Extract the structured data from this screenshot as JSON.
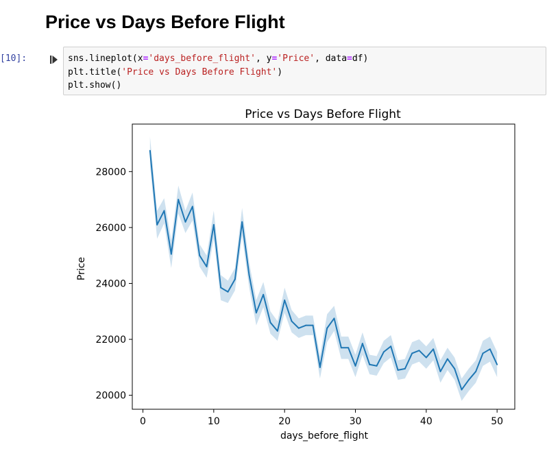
{
  "heading": "Price vs Days Before Flight",
  "cell": {
    "prompt": "[10]:",
    "code_lines": [
      [
        {
          "t": "sns.lineplot(x",
          "c": ""
        },
        {
          "t": "=",
          "c": "op"
        },
        {
          "t": "'days_before_flight'",
          "c": "str"
        },
        {
          "t": ", y",
          "c": ""
        },
        {
          "t": "=",
          "c": "op"
        },
        {
          "t": "'Price'",
          "c": "str"
        },
        {
          "t": ", data",
          "c": ""
        },
        {
          "t": "=",
          "c": "op"
        },
        {
          "t": "df)",
          "c": ""
        }
      ],
      [
        {
          "t": "plt.title(",
          "c": ""
        },
        {
          "t": "'Price vs Days Before Flight'",
          "c": "str"
        },
        {
          "t": ")",
          "c": ""
        }
      ],
      [
        {
          "t": "plt.show()",
          "c": ""
        }
      ]
    ]
  },
  "colors": {
    "line": "#1f77b4",
    "band": "#1f77b4",
    "prompt": "#303F9F",
    "string": "#BA2121",
    "operator": "#AA22FF"
  },
  "icons": {
    "run": "run-cell-icon"
  },
  "chart_data": {
    "type": "line",
    "title": "Price vs Days Before Flight",
    "xlabel": "days_before_flight",
    "ylabel": "Price",
    "xlim": [
      -1.5,
      52.5
    ],
    "ylim": [
      19500,
      29700
    ],
    "xticks": [
      0,
      10,
      20,
      30,
      40,
      50
    ],
    "yticks": [
      20000,
      22000,
      24000,
      26000,
      28000
    ],
    "grid": false,
    "legend": "none",
    "series": [
      {
        "x": [
          1,
          2,
          3,
          4,
          5,
          6,
          7,
          8,
          9,
          10,
          11,
          12,
          13,
          14,
          15,
          16,
          17,
          18,
          19,
          20,
          21,
          22,
          23,
          24,
          25,
          26,
          27,
          28,
          29,
          30,
          31,
          32,
          33,
          34,
          35,
          36,
          37,
          38,
          39,
          40,
          41,
          42,
          43,
          44,
          45,
          46,
          47,
          48,
          49,
          50
        ],
        "y": [
          28750,
          26100,
          26600,
          25050,
          27000,
          26200,
          26750,
          25000,
          24600,
          26100,
          23850,
          23700,
          24150,
          26200,
          24300,
          22950,
          23600,
          22600,
          22300,
          23400,
          22650,
          22400,
          22500,
          22500,
          21000,
          22400,
          22750,
          21700,
          21700,
          21050,
          21850,
          21100,
          21050,
          21550,
          21750,
          20900,
          20950,
          21500,
          21600,
          21350,
          21650,
          20850,
          21300,
          20950,
          20200,
          20550,
          20850,
          21500,
          21650,
          21100
        ],
        "ci_low": [
          28250,
          25600,
          26150,
          24550,
          26500,
          25800,
          26250,
          24600,
          24200,
          25600,
          23400,
          23300,
          23750,
          25700,
          23850,
          22500,
          23150,
          22200,
          21950,
          22950,
          22250,
          22050,
          22150,
          22150,
          20600,
          21900,
          22300,
          21300,
          21300,
          20650,
          21450,
          20750,
          20700,
          21150,
          21350,
          20550,
          20600,
          21100,
          21200,
          20950,
          21250,
          20450,
          20900,
          20550,
          19800,
          20150,
          20450,
          21050,
          21200,
          20650
        ],
        "ci_high": [
          29250,
          26600,
          27050,
          25550,
          27500,
          26600,
          27250,
          25400,
          25000,
          26600,
          24300,
          24100,
          24550,
          26700,
          24750,
          23400,
          24050,
          23000,
          22650,
          23850,
          23050,
          22750,
          22850,
          22850,
          21400,
          22900,
          23200,
          22100,
          22100,
          21450,
          22250,
          21450,
          21400,
          21950,
          22150,
          21250,
          21300,
          21900,
          22000,
          21750,
          22050,
          21250,
          21700,
          21350,
          20600,
          20950,
          21250,
          21950,
          22100,
          21550
        ]
      }
    ]
  }
}
